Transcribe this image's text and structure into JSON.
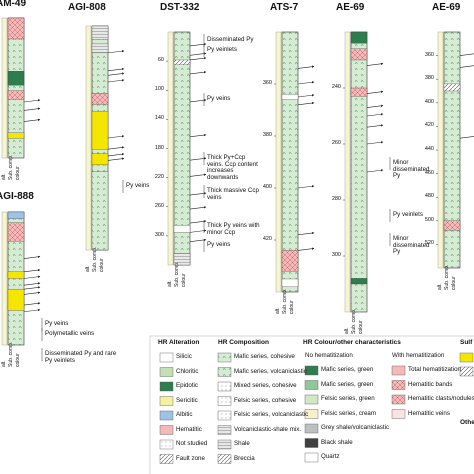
{
  "logs": [
    {
      "name": "AM-49",
      "depth_ticks": [],
      "notes": []
    },
    {
      "name": "AGI-808",
      "depth_ticks": [],
      "notes": [
        "Py veins"
      ]
    },
    {
      "name": "DST-332",
      "depth_ticks": [
        60,
        100,
        140,
        180,
        220,
        260,
        300
      ],
      "notes": [
        "Disseminated Py",
        "Py veinlets",
        "Py veins",
        "Thick Py+Ccp veins. Ccp content increases downwards",
        "Thick massive Ccp veins",
        "Thick Py veins with minor Ccp",
        "Py veins"
      ]
    },
    {
      "name": "ATS-7",
      "depth_ticks": [
        360,
        380,
        400,
        420
      ],
      "notes": []
    },
    {
      "name": "AE-69",
      "depth_ticks": [
        240,
        260,
        280,
        300
      ],
      "notes": [
        "Minor disseminated Py",
        "Py veinlets",
        "Minor disseminated Py"
      ]
    },
    {
      "name": "AE-69",
      "depth_ticks": [
        360,
        380,
        400,
        420,
        440,
        460,
        480,
        500,
        520
      ],
      "notes": []
    },
    {
      "name": "AGI-888",
      "depth_ticks": [],
      "notes": [
        "Py veins",
        "Polymetallic veins",
        "Disseminated Py and rare Py veinlets"
      ]
    }
  ],
  "column_labels": [
    "alt.",
    "Sub. comp.",
    "colour"
  ],
  "legend": {
    "alteration": {
      "title": "HR Alteration",
      "items": [
        "Silicic",
        "Chloritic",
        "Epidotic",
        "Sericitic",
        "Albitic",
        "Hematitic",
        "Not studied",
        "Fault zone"
      ]
    },
    "composition": {
      "title": "HR Composition",
      "items": [
        "Mafic series, cohesive",
        "Mafic series, volcaniclastic",
        "Mixed series, cohesive",
        "Felsic series, cohesive",
        "Felsic series, volcaniclastic",
        "Volcaniclastic-shale mix.",
        "Shale",
        "Breccia"
      ]
    },
    "colour": {
      "title": "HR Colour/other characteristics",
      "no_hem_title": "No hematitization",
      "with_hem_title": "With hematitization",
      "no_hem": [
        "Mafic series, green",
        "Mafic series, green",
        "Felsic series, green",
        "Felsic series, cream",
        "Grey shale/volcaniclastic",
        "Black shale",
        "Quartz"
      ],
      "with_hem": [
        "Total hematitization",
        "Hematitic bands",
        "Hematitic clasts/nodules",
        "Hematitic veins"
      ]
    },
    "sulfides_title": "Sulf",
    "other_title": "Othe"
  }
}
